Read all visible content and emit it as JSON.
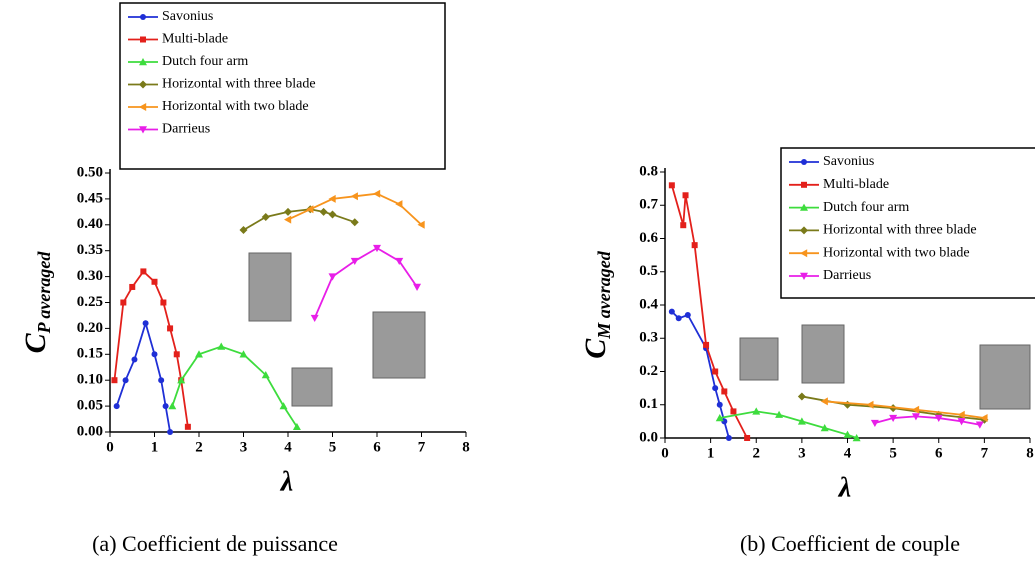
{
  "chart_data": [
    {
      "type": "line",
      "ylabel": "C",
      "ylabel_sub": "P averaged",
      "xlabel": "λ",
      "caption": "(a) Coefficient de puissance",
      "xlim": [
        0,
        8
      ],
      "xticks": [
        0,
        1,
        2,
        3,
        4,
        5,
        6,
        7,
        8
      ],
      "ylim": [
        0,
        0.5
      ],
      "yticks": [
        {
          "value": 0,
          "label": "0.00"
        },
        0.05,
        {
          "value": 0.1,
          "label": "0.10"
        },
        0.15,
        {
          "value": 0.2,
          "label": "0.20"
        },
        0.25,
        {
          "value": 0.3,
          "label": "0.30"
        },
        0.35,
        {
          "value": 0.4,
          "label": "0.40"
        },
        0.45,
        {
          "value": 0.5,
          "label": "0.50"
        }
      ],
      "legend": "top",
      "series": [
        {
          "name": "Savonius",
          "color": "#1f2fd6",
          "marker": "circle",
          "x": [
            0.15,
            0.35,
            0.55,
            0.8,
            1.0,
            1.15,
            1.25,
            1.35
          ],
          "values": [
            0.05,
            0.1,
            0.14,
            0.21,
            0.15,
            0.1,
            0.05,
            0.0
          ]
        },
        {
          "name": "Multi-blade",
          "color": "#e3201b",
          "marker": "square",
          "x": [
            0.1,
            0.3,
            0.5,
            0.75,
            1.0,
            1.2,
            1.35,
            1.5,
            1.6,
            1.75
          ],
          "values": [
            0.1,
            0.25,
            0.28,
            0.31,
            0.29,
            0.25,
            0.2,
            0.15,
            0.1,
            0.01
          ]
        },
        {
          "name": "Dutch four arm",
          "color": "#3ddc3d",
          "marker": "triangle",
          "x": [
            1.4,
            1.6,
            2.0,
            2.5,
            3.0,
            3.5,
            3.9,
            4.2
          ],
          "values": [
            0.05,
            0.1,
            0.15,
            0.165,
            0.15,
            0.11,
            0.05,
            0.01
          ]
        },
        {
          "name": "Horizontal with three blade",
          "color": "#7a7a1a",
          "marker": "diamond",
          "x": [
            3.0,
            3.5,
            4.0,
            4.5,
            4.8,
            5.0,
            5.5
          ],
          "values": [
            0.39,
            0.415,
            0.425,
            0.43,
            0.425,
            0.42,
            0.405
          ]
        },
        {
          "name": "Horizontal with two blade",
          "color": "#f7941d",
          "marker": "left-triangle",
          "x": [
            4.0,
            4.5,
            5.0,
            5.5,
            6.0,
            6.5,
            7.0
          ],
          "values": [
            0.41,
            0.43,
            0.45,
            0.455,
            0.46,
            0.44,
            0.4
          ]
        },
        {
          "name": "Darrieus",
          "color": "#e81ee8",
          "marker": "down-triangle",
          "x": [
            4.6,
            5.0,
            5.5,
            6.0,
            6.5,
            6.9
          ],
          "values": [
            0.22,
            0.3,
            0.33,
            0.355,
            0.33,
            0.28
          ]
        }
      ]
    },
    {
      "type": "line",
      "ylabel": "C",
      "ylabel_sub": "M averaged",
      "xlabel": "λ",
      "caption": "(b) Coefficient de couple",
      "xlim": [
        0,
        8
      ],
      "xticks": [
        0,
        1,
        2,
        3,
        4,
        5,
        6,
        7,
        8
      ],
      "ylim": [
        0,
        0.8
      ],
      "yticks": [
        {
          "value": 0,
          "label": "0.0"
        },
        0.1,
        0.2,
        0.3,
        0.4,
        0.5,
        0.6,
        0.7,
        0.8
      ],
      "legend": "top-right",
      "series": [
        {
          "name": "Savonius",
          "color": "#1f2fd6",
          "marker": "circle",
          "x": [
            0.15,
            0.3,
            0.5,
            0.9,
            1.1,
            1.2,
            1.3,
            1.4
          ],
          "values": [
            0.38,
            0.36,
            0.37,
            0.27,
            0.15,
            0.1,
            0.05,
            0.0
          ]
        },
        {
          "name": "Multi-blade",
          "color": "#e3201b",
          "marker": "square",
          "x": [
            0.15,
            0.4,
            0.45,
            0.65,
            0.9,
            1.1,
            1.3,
            1.5,
            1.8
          ],
          "values": [
            0.76,
            0.64,
            0.73,
            0.58,
            0.28,
            0.2,
            0.14,
            0.08,
            0.0
          ]
        },
        {
          "name": "Dutch four arm",
          "color": "#3ddc3d",
          "marker": "triangle",
          "x": [
            1.2,
            2.0,
            2.5,
            3.0,
            3.5,
            4.0,
            4.2
          ],
          "values": [
            0.06,
            0.08,
            0.07,
            0.05,
            0.03,
            0.01,
            0.0
          ]
        },
        {
          "name": "Horizontal with three blade",
          "color": "#7a7a1a",
          "marker": "diamond",
          "x": [
            3.0,
            4.0,
            5.0,
            6.0,
            7.0
          ],
          "values": [
            0.125,
            0.1,
            0.09,
            0.07,
            0.055
          ]
        },
        {
          "name": "Horizontal with two blade",
          "color": "#f7941d",
          "marker": "left-triangle",
          "x": [
            3.5,
            4.5,
            5.5,
            6.5,
            7.0
          ],
          "values": [
            0.11,
            0.1,
            0.085,
            0.07,
            0.06
          ]
        },
        {
          "name": "Darrieus",
          "color": "#e81ee8",
          "marker": "down-triangle",
          "x": [
            4.6,
            5.0,
            5.5,
            6.0,
            6.5,
            6.9
          ],
          "values": [
            0.045,
            0.06,
            0.065,
            0.06,
            0.05,
            0.04
          ]
        }
      ]
    }
  ]
}
